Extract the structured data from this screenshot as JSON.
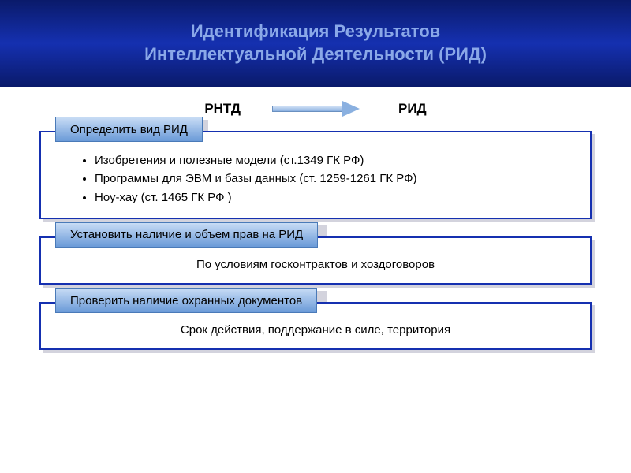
{
  "colors": {
    "header_gradient_top": "#0a1a6a",
    "header_gradient_mid": "#1530b0",
    "header_text": "#8aa8e8",
    "tab_gradient_top": "#c8dcf5",
    "tab_gradient_bottom": "#6a9ad8",
    "tab_border": "#4a7ab8",
    "block_border": "#1530b0",
    "arrow_fill": "#8ab0e0",
    "shadow": "rgba(80,80,120,0.25)"
  },
  "header": {
    "title_line1": "Идентификация Результатов",
    "title_line2": "Интеллектуальной Деятельности (РИД)"
  },
  "flow": {
    "left": "РНТД",
    "right": "РИД"
  },
  "blocks": [
    {
      "tab": "Определить вид РИД",
      "type": "list",
      "items": [
        "Изобретения и полезные модели (ст.1349 ГК РФ)",
        "Программы для ЭВМ и базы данных (ст. 1259-1261 ГК РФ)",
        "Ноу-хау (ст. 1465 ГК РФ )"
      ]
    },
    {
      "tab": "Установить наличие и объем прав на РИД",
      "type": "text",
      "body": "По  условиям госконтрактов и хоздоговоров"
    },
    {
      "tab": "Проверить наличие охранных документов",
      "type": "text",
      "body": "Срок действия, поддержание в силе, территория"
    }
  ]
}
